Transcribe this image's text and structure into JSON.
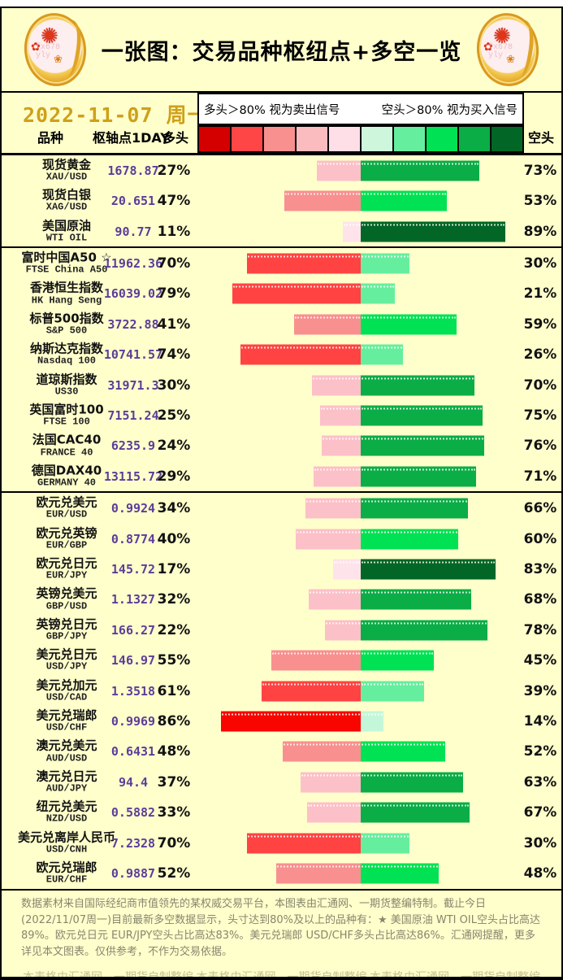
{
  "header": {
    "title": "一张图：交易品种枢纽点+多空一览",
    "logo_icon": "gold-coin-plum-blossom",
    "logo_watermark": "fx678\nyly"
  },
  "subheader": {
    "date": "2022-11-07 周一",
    "legend_long": "多头＞80% 视为卖出信号",
    "legend_short": "空头＞80% 视为买入信号"
  },
  "legend_scale_colors": [
    "#D40000",
    "#FF4646",
    "#F89090",
    "#FBBCC0",
    "#FFDFE7",
    "#CDF6DD",
    "#66EE9F",
    "#00E254",
    "#0BAD47",
    "#026726"
  ],
  "bar_colors": {
    "long": [
      "#FFE3EB",
      "#FCC0C8",
      "#F89090",
      "#FF4343",
      "#F90500"
    ],
    "short": [
      "#C4F7D9",
      "#66EE9F",
      "#00E254",
      "#0BAD47",
      "#026726"
    ]
  },
  "columns": {
    "symbol": "品种",
    "pivot": "枢轴点1DAY",
    "long": "多头",
    "short": "空头"
  },
  "table": {
    "rows": [
      {
        "zh": "现货黄金",
        "en": "XAU/USD",
        "pivot": "1678.87",
        "long": 27,
        "short": 73,
        "group_end": false
      },
      {
        "zh": "现货白银",
        "en": "XAG/USD",
        "pivot": "20.651",
        "long": 47,
        "short": 53,
        "group_end": false
      },
      {
        "zh": "美国原油",
        "en": "WTI OIL",
        "pivot": "90.77",
        "long": 11,
        "short": 89,
        "group_end": true
      },
      {
        "zh": "富时中国A50 ☆",
        "en": "FTSE China A50",
        "pivot": "11962.36",
        "long": 70,
        "short": 30,
        "group_end": false
      },
      {
        "zh": "香港恒生指数",
        "en": "HK Hang Seng",
        "pivot": "16039.02",
        "long": 79,
        "short": 21,
        "group_end": false
      },
      {
        "zh": "标普500指数",
        "en": "S&P 500",
        "pivot": "3722.88",
        "long": 41,
        "short": 59,
        "group_end": false
      },
      {
        "zh": "纳斯达克指数",
        "en": "Nasdaq 100",
        "pivot": "10741.57",
        "long": 74,
        "short": 26,
        "group_end": false
      },
      {
        "zh": "道琼斯指数",
        "en": "US30",
        "pivot": "31971.3",
        "long": 30,
        "short": 70,
        "group_end": false
      },
      {
        "zh": "英国富时100",
        "en": "FTSE 100",
        "pivot": "7151.24",
        "long": 25,
        "short": 75,
        "group_end": false
      },
      {
        "zh": "法国CAC40",
        "en": "FRANCE 40",
        "pivot": "6235.9",
        "long": 24,
        "short": 76,
        "group_end": false
      },
      {
        "zh": "德国DAX40",
        "en": "GERMANY 40",
        "pivot": "13115.72",
        "long": 29,
        "short": 71,
        "group_end": true
      },
      {
        "zh": "欧元兑美元",
        "en": "EUR/USD",
        "pivot": "0.9924",
        "long": 34,
        "short": 66,
        "group_end": false
      },
      {
        "zh": "欧元兑英镑",
        "en": "EUR/GBP",
        "pivot": "0.8774",
        "long": 40,
        "short": 60,
        "group_end": false
      },
      {
        "zh": "欧元兑日元",
        "en": "EUR/JPY",
        "pivot": "145.72",
        "long": 17,
        "short": 83,
        "group_end": false
      },
      {
        "zh": "英镑兑美元",
        "en": "GBP/USD",
        "pivot": "1.1327",
        "long": 32,
        "short": 68,
        "group_end": false
      },
      {
        "zh": "英镑兑日元",
        "en": "GBP/JPY",
        "pivot": "166.27",
        "long": 22,
        "short": 78,
        "group_end": false
      },
      {
        "zh": "美元兑日元",
        "en": "USD/JPY",
        "pivot": "146.97",
        "long": 55,
        "short": 45,
        "group_end": false
      },
      {
        "zh": "美元兑加元",
        "en": "USD/CAD",
        "pivot": "1.3518",
        "long": 61,
        "short": 39,
        "group_end": false
      },
      {
        "zh": "美元兑瑞郎",
        "en": "USD/CHF",
        "pivot": "0.9969",
        "long": 86,
        "short": 14,
        "group_end": false
      },
      {
        "zh": "澳元兑美元",
        "en": "AUD/USD",
        "pivot": "0.6431",
        "long": 48,
        "short": 52,
        "group_end": false
      },
      {
        "zh": "澳元兑日元",
        "en": "AUD/JPY",
        "pivot": "94.4",
        "long": 37,
        "short": 63,
        "group_end": false
      },
      {
        "zh": "纽元兑美元",
        "en": "NZD/USD",
        "pivot": "0.5882",
        "long": 33,
        "short": 67,
        "group_end": false
      },
      {
        "zh": "美元兑离岸人民币",
        "en": "USD/CNH",
        "pivot": "7.2328",
        "long": 70,
        "short": 30,
        "group_end": false
      },
      {
        "zh": "欧元兑瑞郎",
        "en": "EUR/CHF",
        "pivot": "0.9887",
        "long": 52,
        "short": 48,
        "group_end": true
      }
    ]
  },
  "chart_data": {
    "type": "bar",
    "title": "一张图：交易品种枢纽点+多空一览",
    "subtitle": "2022-11-07 周一",
    "orientation": "horizontal-diverging",
    "legend": [
      "多头＞80% 视为卖出信号",
      "空头＞80% 视为买入信号"
    ],
    "categories": [
      "XAU/USD",
      "XAG/USD",
      "WTI OIL",
      "FTSE China A50",
      "HK Hang Seng",
      "S&P 500",
      "Nasdaq 100",
      "US30",
      "FTSE 100",
      "FRANCE 40",
      "GERMANY 40",
      "EUR/USD",
      "EUR/GBP",
      "EUR/JPY",
      "GBP/USD",
      "GBP/JPY",
      "USD/JPY",
      "USD/CAD",
      "USD/CHF",
      "AUD/USD",
      "AUD/JPY",
      "NZD/USD",
      "USD/CNH",
      "EUR/CHF"
    ],
    "series": [
      {
        "name": "多头 %",
        "values": [
          27,
          47,
          11,
          70,
          79,
          41,
          74,
          30,
          25,
          24,
          29,
          34,
          40,
          17,
          32,
          22,
          55,
          61,
          86,
          48,
          37,
          33,
          70,
          52
        ]
      },
      {
        "name": "空头 %",
        "values": [
          73,
          53,
          89,
          30,
          21,
          59,
          26,
          70,
          75,
          76,
          71,
          66,
          60,
          83,
          68,
          78,
          45,
          39,
          14,
          52,
          63,
          67,
          30,
          48
        ]
      },
      {
        "name": "枢轴点1DAY",
        "values": [
          1678.87,
          20.651,
          90.77,
          11962.36,
          16039.02,
          3722.88,
          10741.57,
          31971.3,
          7151.24,
          6235.9,
          13115.72,
          0.9924,
          0.8774,
          145.72,
          1.1327,
          166.27,
          146.97,
          1.3518,
          0.9969,
          0.6431,
          94.4,
          0.5882,
          7.2328,
          0.9887
        ]
      }
    ],
    "xlim": [
      0,
      100
    ],
    "grid": false,
    "legend_position": "top"
  },
  "footer": {
    "note": "数据素材来自国际经纪商市值领先的某权威交易平台，本图表由汇通网、一期货整编特制。截止今日(2022/11/07周一)目前最新多空数据显示，头寸达到80%及以上的品种有：★ 美国原油 WTI OIL空头占比高达89%。欧元兑日元 EUR/JPY空头占比高达83%。美元兑瑞郎 USD/CHF多头占比高达86%。汇通网提醒，更多详见本文图表。仅供参考，不作为交易依据。",
    "watermarks": [
      "本表格由汇通网、一期货自制整编",
      "本表格由汇通网、一期货自制整编",
      "本表格由汇通网、一期货自制整编"
    ]
  }
}
